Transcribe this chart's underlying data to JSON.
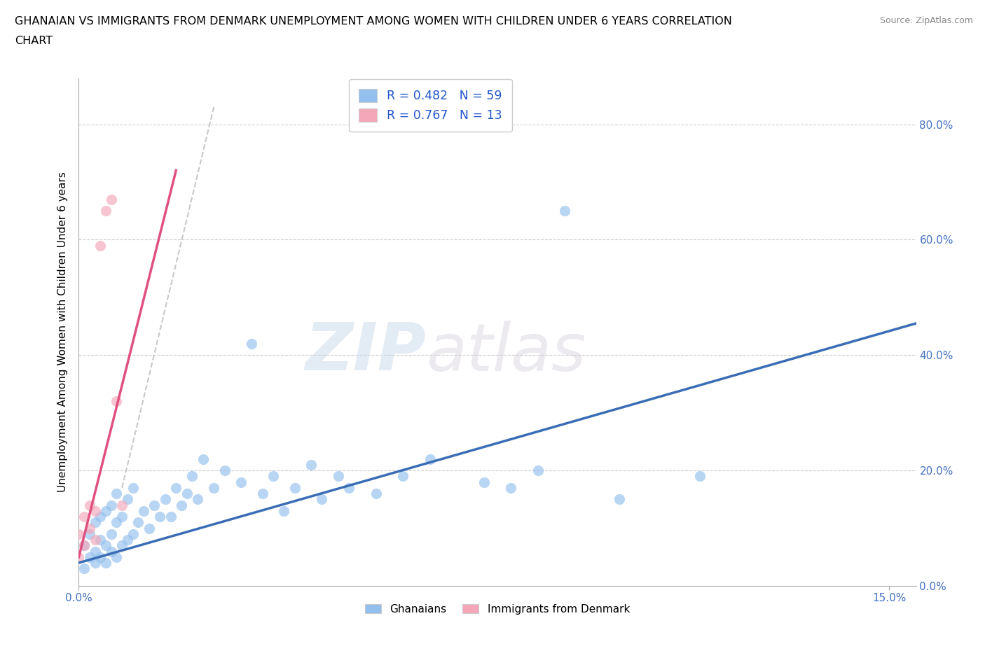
{
  "title_line1": "GHANAIAN VS IMMIGRANTS FROM DENMARK UNEMPLOYMENT AMONG WOMEN WITH CHILDREN UNDER 6 YEARS CORRELATION",
  "title_line2": "CHART",
  "source": "Source: ZipAtlas.com",
  "ylabel": "Unemployment Among Women with Children Under 6 years",
  "xlim": [
    0.0,
    0.155
  ],
  "ylim": [
    0.0,
    0.88
  ],
  "yticks": [
    0.0,
    0.2,
    0.4,
    0.6,
    0.8
  ],
  "ytick_labels": [
    "0.0%",
    "20.0%",
    "40.0%",
    "60.0%",
    "80.0%"
  ],
  "legend_r1": "R = 0.482   N = 59",
  "legend_r2": "R = 0.767   N = 13",
  "color_blue": "#92BFED",
  "color_pink": "#F4A7B9",
  "line_color_blue": "#3A6DB5",
  "line_color_pink": "#E05080",
  "line_color_dashed": "#BBBBBB",
  "watermark_zip": "ZIP",
  "watermark_atlas": "atlas",
  "blue_line_x0": 0.0,
  "blue_line_y0": 0.04,
  "blue_line_x1": 0.155,
  "blue_line_y1": 0.455,
  "pink_line_x0": 0.0,
  "pink_line_y0": 0.05,
  "pink_line_x1": 0.018,
  "pink_line_y1": 0.72,
  "dash_line_x0": 0.008,
  "dash_line_y0": 0.17,
  "dash_line_x1": 0.025,
  "dash_line_y1": 0.83,
  "ghanaian_x": [
    0.001,
    0.001,
    0.002,
    0.002,
    0.003,
    0.003,
    0.003,
    0.004,
    0.004,
    0.004,
    0.005,
    0.005,
    0.005,
    0.006,
    0.006,
    0.006,
    0.007,
    0.007,
    0.007,
    0.008,
    0.008,
    0.009,
    0.009,
    0.01,
    0.01,
    0.011,
    0.012,
    0.013,
    0.014,
    0.015,
    0.016,
    0.017,
    0.018,
    0.019,
    0.02,
    0.021,
    0.022,
    0.023,
    0.025,
    0.027,
    0.03,
    0.032,
    0.034,
    0.036,
    0.038,
    0.04,
    0.043,
    0.045,
    0.048,
    0.05,
    0.055,
    0.06,
    0.065,
    0.075,
    0.08,
    0.085,
    0.09,
    0.1,
    0.115
  ],
  "ghanaian_y": [
    0.03,
    0.07,
    0.05,
    0.09,
    0.04,
    0.06,
    0.11,
    0.05,
    0.08,
    0.12,
    0.04,
    0.07,
    0.13,
    0.06,
    0.09,
    0.14,
    0.05,
    0.11,
    0.16,
    0.07,
    0.12,
    0.08,
    0.15,
    0.09,
    0.17,
    0.11,
    0.13,
    0.1,
    0.14,
    0.12,
    0.15,
    0.12,
    0.17,
    0.14,
    0.16,
    0.19,
    0.15,
    0.22,
    0.17,
    0.2,
    0.18,
    0.42,
    0.16,
    0.19,
    0.13,
    0.17,
    0.21,
    0.15,
    0.19,
    0.17,
    0.16,
    0.19,
    0.22,
    0.18,
    0.17,
    0.2,
    0.65,
    0.15,
    0.19
  ],
  "denmark_x": [
    0.0,
    0.0,
    0.001,
    0.001,
    0.002,
    0.002,
    0.003,
    0.003,
    0.004,
    0.005,
    0.006,
    0.007,
    0.008
  ],
  "denmark_y": [
    0.05,
    0.09,
    0.07,
    0.12,
    0.1,
    0.14,
    0.08,
    0.13,
    0.59,
    0.65,
    0.67,
    0.32,
    0.14
  ]
}
